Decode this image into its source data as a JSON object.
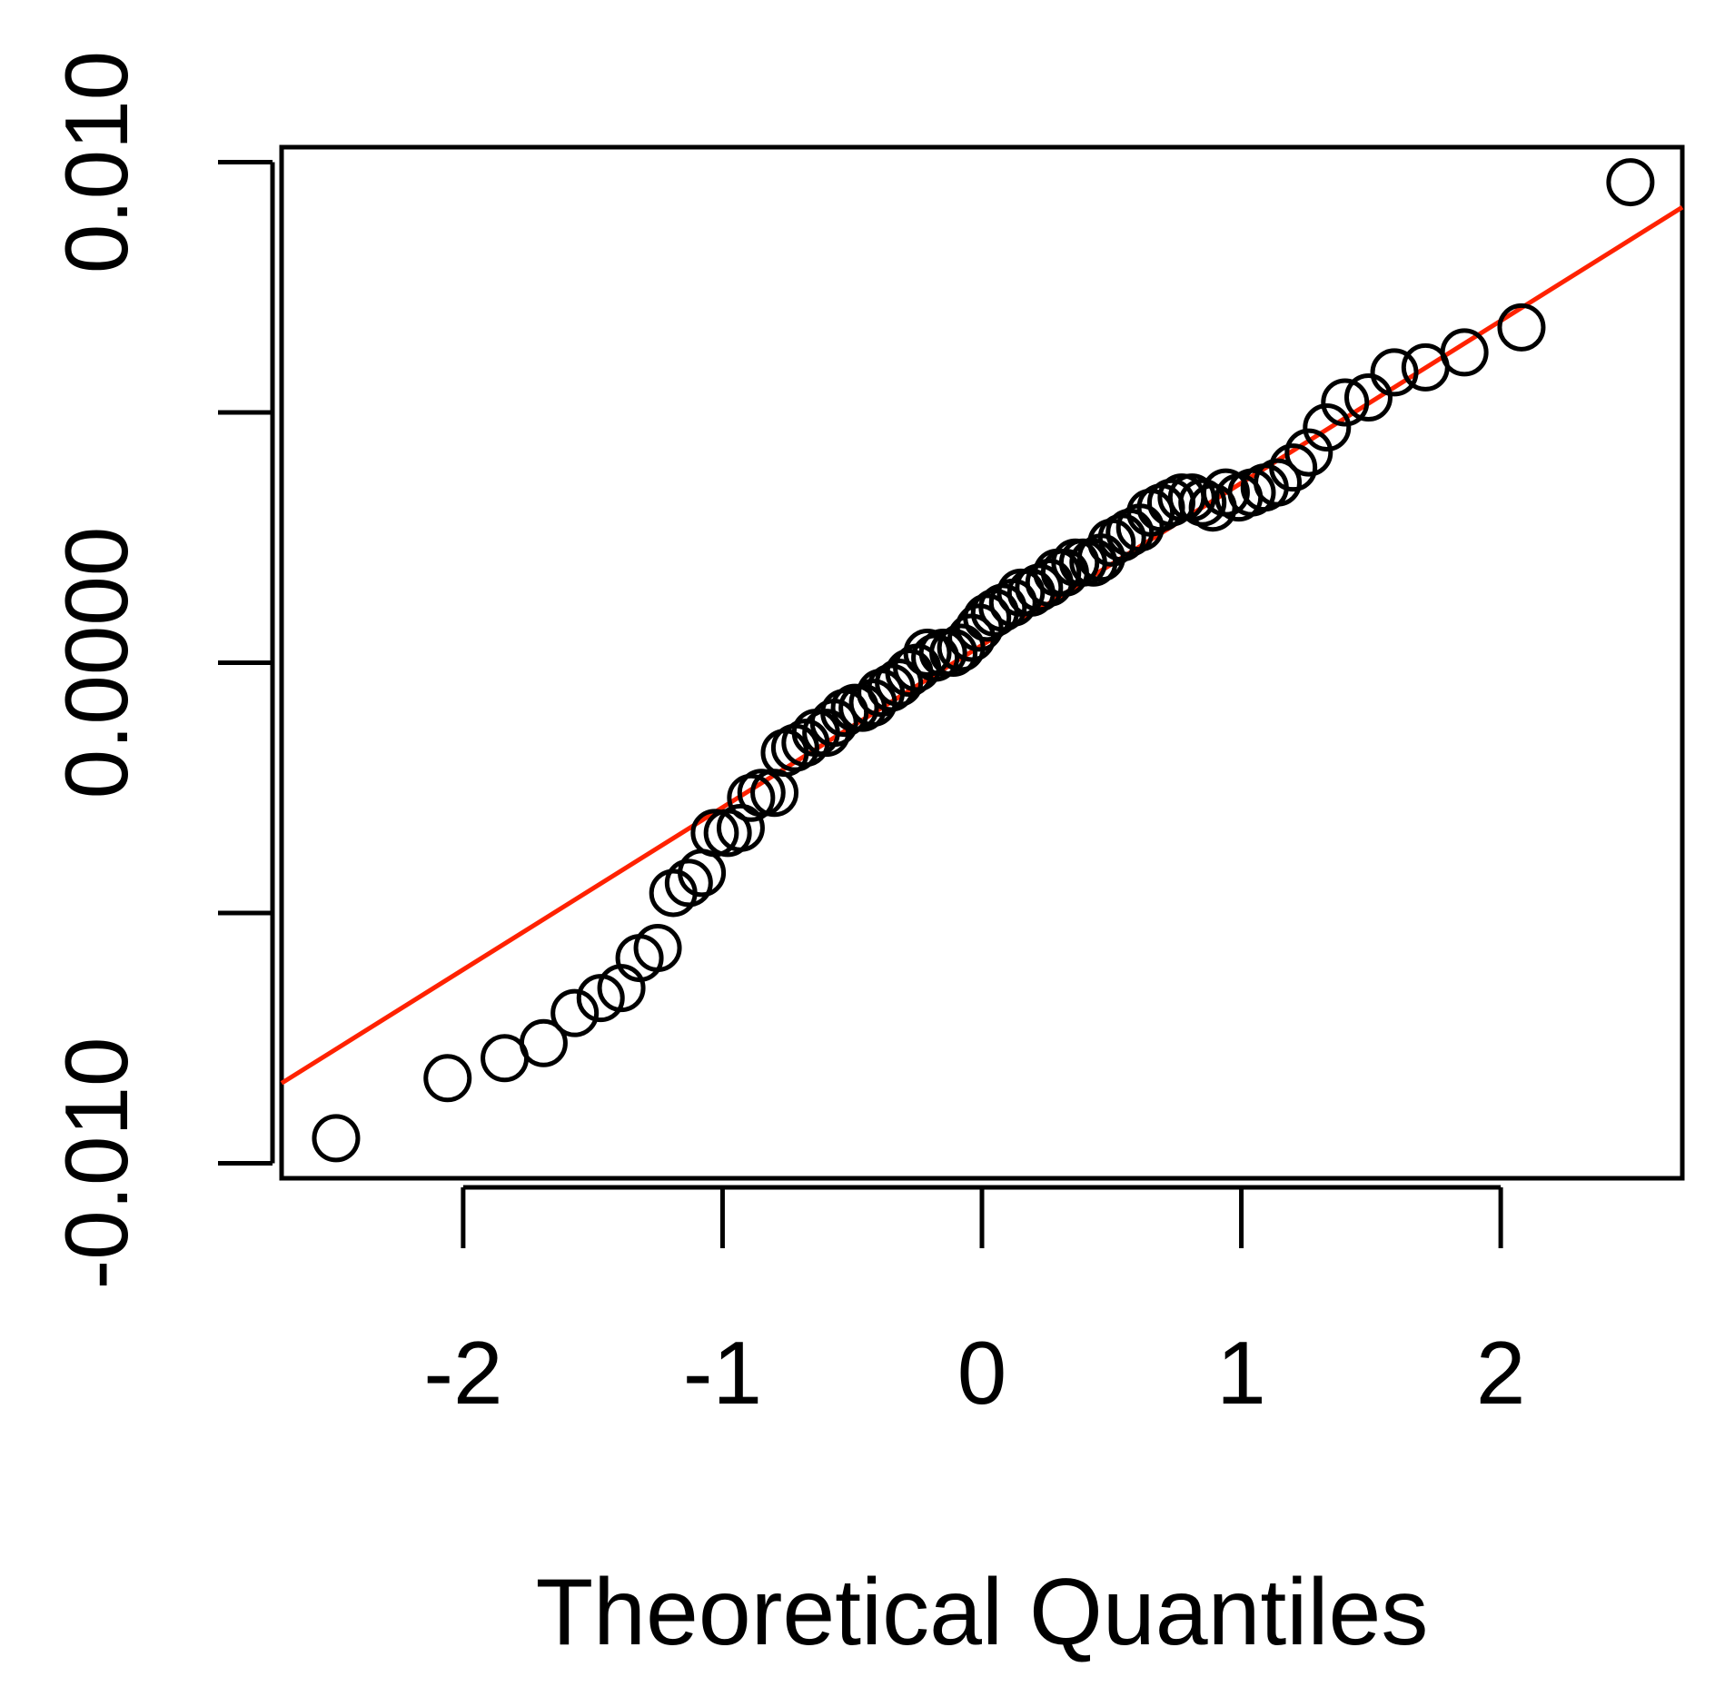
{
  "chart_data": {
    "type": "scatter",
    "title": "",
    "xlabel": "Theoretical Quantiles",
    "ylabel": "",
    "xlim": [
      -2.7,
      2.7
    ],
    "ylim": [
      -0.0103,
      0.0103
    ],
    "x_ticks": [
      -2,
      -1,
      0,
      1,
      2
    ],
    "x_tick_labels": [
      "-2",
      "-1",
      "0",
      "1",
      "2"
    ],
    "y_ticks": [
      -0.01,
      -0.005,
      0,
      0.005,
      0.01
    ],
    "y_tick_labels": [
      "-0.010",
      "",
      "0.0000",
      "",
      "0.010"
    ],
    "grid": false,
    "legend": "none",
    "colors": {
      "points": "#000000",
      "reference_line": "#ff2200",
      "frame": "#000000"
    },
    "reference_line": {
      "x": [
        -2.7,
        2.7
      ],
      "y": [
        -0.0084,
        0.0091
      ]
    },
    "series": [
      {
        "x": [
          -2.49,
          -2.06,
          -1.84,
          -1.69,
          -1.57,
          -1.47,
          -1.39,
          -1.32,
          -1.25,
          -1.19,
          -1.13,
          -1.08,
          -1.03,
          -0.98,
          -0.93,
          -0.89,
          -0.85,
          -0.8,
          -0.76,
          -0.72,
          -0.68,
          -0.64,
          -0.6,
          -0.57,
          -0.53,
          -0.49,
          -0.46,
          -0.42,
          -0.39,
          -0.35,
          -0.32,
          -0.28,
          -0.25,
          -0.21,
          -0.18,
          -0.15,
          -0.11,
          -0.08,
          -0.04,
          -0.01,
          0.02,
          0.05,
          0.08,
          0.12,
          0.15,
          0.19,
          0.22,
          0.26,
          0.29,
          0.32,
          0.36,
          0.39,
          0.43,
          0.46,
          0.5,
          0.54,
          0.57,
          0.61,
          0.65,
          0.69,
          0.73,
          0.77,
          0.81,
          0.85,
          0.89,
          0.94,
          0.99,
          1.04,
          1.09,
          1.14,
          1.2,
          1.26,
          1.33,
          1.4,
          1.49,
          1.59,
          1.71,
          1.86,
          2.08,
          2.5
        ],
        "y": [
          -0.0095,
          -0.0083,
          -0.0079,
          -0.0076,
          -0.007,
          -0.0067,
          -0.0065,
          -0.0059,
          -0.0057,
          -0.0046,
          -0.0044,
          -0.0042,
          -0.0034,
          -0.0034,
          -0.0033,
          -0.0027,
          -0.0026,
          -0.0026,
          -0.0018,
          -0.0017,
          -0.0016,
          -0.0014,
          -0.0014,
          -0.0012,
          -0.001,
          -0.0009,
          -0.0009,
          -0.0008,
          -0.0006,
          -0.0005,
          -0.0004,
          -0.0002,
          -0.0001,
          0.0002,
          0.0001,
          0.0002,
          0.0002,
          0.0003,
          0.0005,
          0.0007,
          0.0009,
          0.001,
          0.0011,
          0.0012,
          0.0014,
          0.0014,
          0.0015,
          0.0016,
          0.0018,
          0.0018,
          0.002,
          0.002,
          0.002,
          0.0021,
          0.0024,
          0.0025,
          0.0026,
          0.0027,
          0.003,
          0.0031,
          0.0032,
          0.0033,
          0.0033,
          0.0032,
          0.0031,
          0.0034,
          0.0033,
          0.0034,
          0.0035,
          0.0036,
          0.0039,
          0.0042,
          0.0047,
          0.0052,
          0.0053,
          0.0058,
          0.0059,
          0.0062,
          0.0067,
          0.0096
        ]
      }
    ]
  }
}
